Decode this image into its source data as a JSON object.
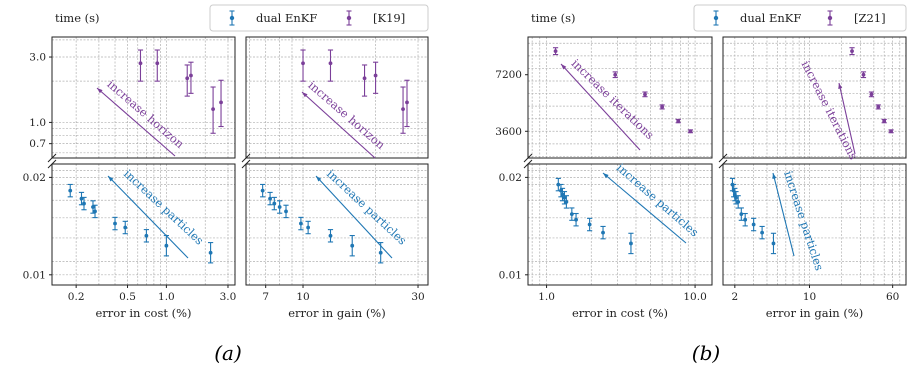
{
  "colors": {
    "enkf": "#1f77b4",
    "ref": "#7b3f99",
    "grid": "#b0b0b0",
    "axis": "#222222"
  },
  "panels": [
    {
      "caption": "(a)",
      "ylabel": "time (s)",
      "legend": [
        "dual EnKF",
        "[K19]"
      ],
      "xlabel_left": "error in cost (%)",
      "xlabel_right": "error in gain (%)",
      "annotations": {
        "top_left": "increase horizon",
        "top_right": "increase horizon",
        "bottom_left": "increase particles",
        "bottom_right": "increase particles"
      },
      "top_ticks": [
        "3.0",
        "1.0",
        "0.7"
      ],
      "bottom_ticks": [
        "0.02",
        "0.01"
      ],
      "xticks_left": [
        "0.2",
        "0.5",
        "1.0",
        "3.0"
      ],
      "xticks_right": [
        "7",
        "10",
        "30"
      ]
    },
    {
      "caption": "(b)",
      "ylabel": "time (s)",
      "legend": [
        "dual EnKF",
        "[Z21]"
      ],
      "xlabel_left": "error in cost (%)",
      "xlabel_right": "error in gain (%)",
      "annotations": {
        "top_left": "increase iterations",
        "top_right": "increase iterations",
        "bottom_left": "increase particles",
        "bottom_right": "increase particles"
      },
      "top_ticks": [
        "7200",
        "3600"
      ],
      "bottom_ticks": [
        "0.02",
        "0.01"
      ],
      "xticks_left": [
        "1.0",
        "10.0"
      ],
      "xticks_right": [
        "2",
        "10",
        "60"
      ]
    }
  ],
  "chart_data": [
    {
      "type": "scatter",
      "title": "",
      "xlabel": [
        "error in cost (%)",
        "error in gain (%)"
      ],
      "ylabel": "time (s)",
      "x_scale": "log",
      "y_scale": "broken log axis",
      "x_ranges": [
        [
          0.13,
          3.4
        ],
        [
          5.8,
          33
        ]
      ],
      "y_ranges": {
        "top": [
          0.55,
          4.2
        ],
        "bottom": [
          0.0093,
          0.022
        ]
      },
      "series": [
        {
          "name": "dual EnKF",
          "color": "#1f77b4",
          "cost": [
            0.18,
            0.22,
            0.23,
            0.27,
            0.28,
            0.4,
            0.48,
            0.7,
            1.0,
            2.2
          ],
          "gain": [
            6.8,
            7.3,
            7.6,
            8.0,
            8.5,
            9.8,
            10.5,
            13.0,
            16.0,
            21.0
          ],
          "time": [
            0.0182,
            0.0172,
            0.0166,
            0.0162,
            0.0157,
            0.0144,
            0.014,
            0.0132,
            0.0123,
            0.0117
          ]
        },
        {
          "name": "[K19]",
          "color": "#7b3f99",
          "cost": [
            0.63,
            0.85,
            1.45,
            1.55,
            2.3,
            2.65
          ],
          "gain": [
            10.0,
            13.0,
            18.0,
            20.0,
            26.0,
            27.0
          ],
          "time": [
            2.7,
            2.7,
            2.1,
            2.2,
            1.25,
            1.4
          ]
        }
      ]
    },
    {
      "type": "scatter",
      "title": "",
      "xlabel": [
        "error in cost (%)",
        "error in gain (%)"
      ],
      "ylabel": "time (s)",
      "x_scale": "log",
      "y_scale": "broken axis",
      "x_ranges": [
        [
          0.75,
          13
        ],
        [
          1.55,
          80
        ]
      ],
      "y_ranges": {
        "top": [
          1900,
          9600
        ],
        "bottom": [
          0.0093,
          0.022
        ]
      },
      "series": [
        {
          "name": "dual EnKF",
          "color": "#1f77b4",
          "cost": [
            1.2,
            1.25,
            1.28,
            1.32,
            1.36,
            1.48,
            1.58,
            1.95,
            2.4,
            3.7
          ],
          "gain": [
            1.9,
            1.95,
            2.0,
            2.05,
            2.15,
            2.3,
            2.5,
            3.0,
            3.6,
            4.6
          ],
          "time": [
            0.019,
            0.0182,
            0.0177,
            0.0173,
            0.0168,
            0.0154,
            0.0148,
            0.0143,
            0.0135,
            0.0125
          ]
        },
        {
          "name": "[Z21]",
          "color": "#7b3f99",
          "cost": [
            1.15,
            2.9,
            4.6,
            6.0,
            7.7,
            9.3
          ],
          "gain": [
            25.0,
            32.0,
            38.0,
            44.0,
            50.0,
            58.0
          ],
          "time": [
            8700,
            7200,
            5950,
            5150,
            4250,
            3600
          ]
        }
      ]
    }
  ]
}
